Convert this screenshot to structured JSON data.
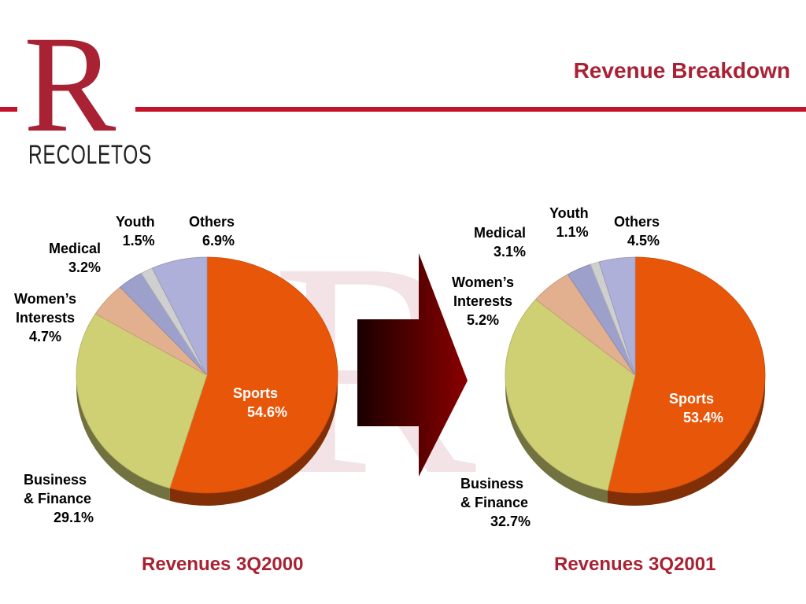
{
  "header": {
    "title": "Revenue Breakdown",
    "brand": "RECOLETOS"
  },
  "colors": {
    "accent": "#a82233",
    "rule": "#c4122a"
  },
  "chart_data": [
    {
      "type": "pie",
      "title": "Revenues 3Q2000",
      "slices": [
        {
          "label": "Sports",
          "value": 54.6,
          "value_text": "54.6%",
          "color": "#e8560a"
        },
        {
          "label": "Business & Finance",
          "label_lines": [
            "Business",
            "& Finance"
          ],
          "value": 29.1,
          "value_text": "29.1%",
          "color": "#cfcf74"
        },
        {
          "label": "Women’s Interests",
          "label_lines": [
            "Women’s",
            "Interests"
          ],
          "value": 4.7,
          "value_text": "4.7%",
          "color": "#e2b08e"
        },
        {
          "label": "Medical",
          "value": 3.2,
          "value_text": "3.2%",
          "color": "#9ea0cc"
        },
        {
          "label": "Youth",
          "value": 1.5,
          "value_text": "1.5%",
          "color": "#cfcfcf"
        },
        {
          "label": "Others",
          "value": 6.9,
          "value_text": "6.9%",
          "color": "#aeb0da"
        }
      ]
    },
    {
      "type": "pie",
      "title": "Revenues 3Q2001",
      "slices": [
        {
          "label": "Sports",
          "value": 53.4,
          "value_text": "53.4%",
          "color": "#e8560a"
        },
        {
          "label": "Business & Finance",
          "label_lines": [
            "Business",
            "& Finance"
          ],
          "value": 32.7,
          "value_text": "32.7%",
          "color": "#cfcf74"
        },
        {
          "label": "Women’s Interests",
          "label_lines": [
            "Women’s",
            "Interests"
          ],
          "value": 5.2,
          "value_text": "5.2%",
          "color": "#e2b08e"
        },
        {
          "label": "Medical",
          "value": 3.1,
          "value_text": "3.1%",
          "color": "#9ea0cc"
        },
        {
          "label": "Youth",
          "value": 1.1,
          "value_text": "1.1%",
          "color": "#cfcfcf"
        },
        {
          "label": "Others",
          "value": 4.5,
          "value_text": "4.5%",
          "color": "#aeb0da"
        }
      ]
    }
  ]
}
